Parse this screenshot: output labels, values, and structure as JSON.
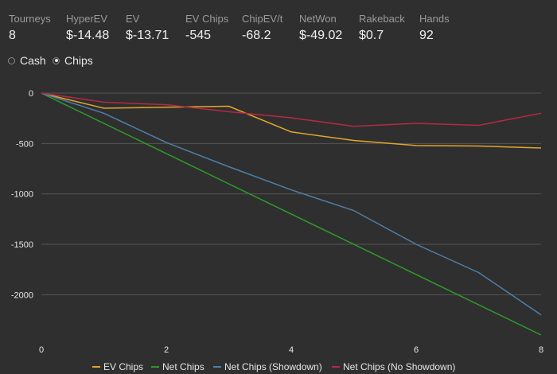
{
  "stats": [
    {
      "label": "Tourneys",
      "value": "8"
    },
    {
      "label": "HyperEV",
      "value": "$-14.48"
    },
    {
      "label": "EV",
      "value": "$-13.71"
    },
    {
      "label": "EV Chips",
      "value": "-545"
    },
    {
      "label": "ChipEV/t",
      "value": "-68.2"
    },
    {
      "label": "NetWon",
      "value": "$-49.02"
    },
    {
      "label": "Rakeback",
      "value": "$0.7"
    },
    {
      "label": "Hands",
      "value": "92"
    }
  ],
  "view_toggle": {
    "options": [
      {
        "label": "Cash",
        "selected": false
      },
      {
        "label": "Chips",
        "selected": true
      }
    ]
  },
  "colors": {
    "background": "#2f2f2f",
    "grid": "#555555",
    "ev_chips": "#e0a72c",
    "net_chips": "#2e9a2a",
    "net_chips_showdown": "#4f7fa8",
    "net_chips_no_showdown": "#b52a45"
  },
  "chart_data": {
    "type": "line",
    "x_ticks": [
      0,
      2,
      4,
      6,
      8
    ],
    "y_ticks": [
      0,
      -500,
      -1000,
      -1500,
      -2000
    ],
    "x_tick_labels": [
      "0",
      "2",
      "4",
      "6",
      "8"
    ],
    "y_tick_labels": [
      "0",
      "-500",
      "-1000",
      "-1500",
      "-2000"
    ],
    "xlim": [
      0,
      8
    ],
    "ylim": [
      -2400,
      0
    ],
    "grid": true,
    "legend_position": "bottom",
    "series": [
      {
        "name": "EV Chips",
        "color_key": "ev_chips",
        "x": [
          0,
          1,
          2,
          3,
          4,
          5,
          6,
          7,
          8
        ],
        "y": [
          0,
          -150,
          -140,
          -130,
          -385,
          -470,
          -520,
          -525,
          -545
        ]
      },
      {
        "name": "Net Chips",
        "color_key": "net_chips",
        "x": [
          0,
          8
        ],
        "y": [
          0,
          -2400
        ]
      },
      {
        "name": "Net Chips (Showdown)",
        "color_key": "net_chips_showdown",
        "x": [
          0,
          1,
          2,
          3,
          4,
          5,
          6,
          7,
          8
        ],
        "y": [
          0,
          -200,
          -490,
          -730,
          -960,
          -1165,
          -1500,
          -1780,
          -2200
        ]
      },
      {
        "name": "Net Chips (No Showdown)",
        "color_key": "net_chips_no_showdown",
        "x": [
          0,
          1,
          2,
          3,
          4,
          5,
          6,
          7,
          8
        ],
        "y": [
          0,
          -90,
          -115,
          -185,
          -245,
          -330,
          -300,
          -320,
          -200
        ]
      }
    ]
  }
}
